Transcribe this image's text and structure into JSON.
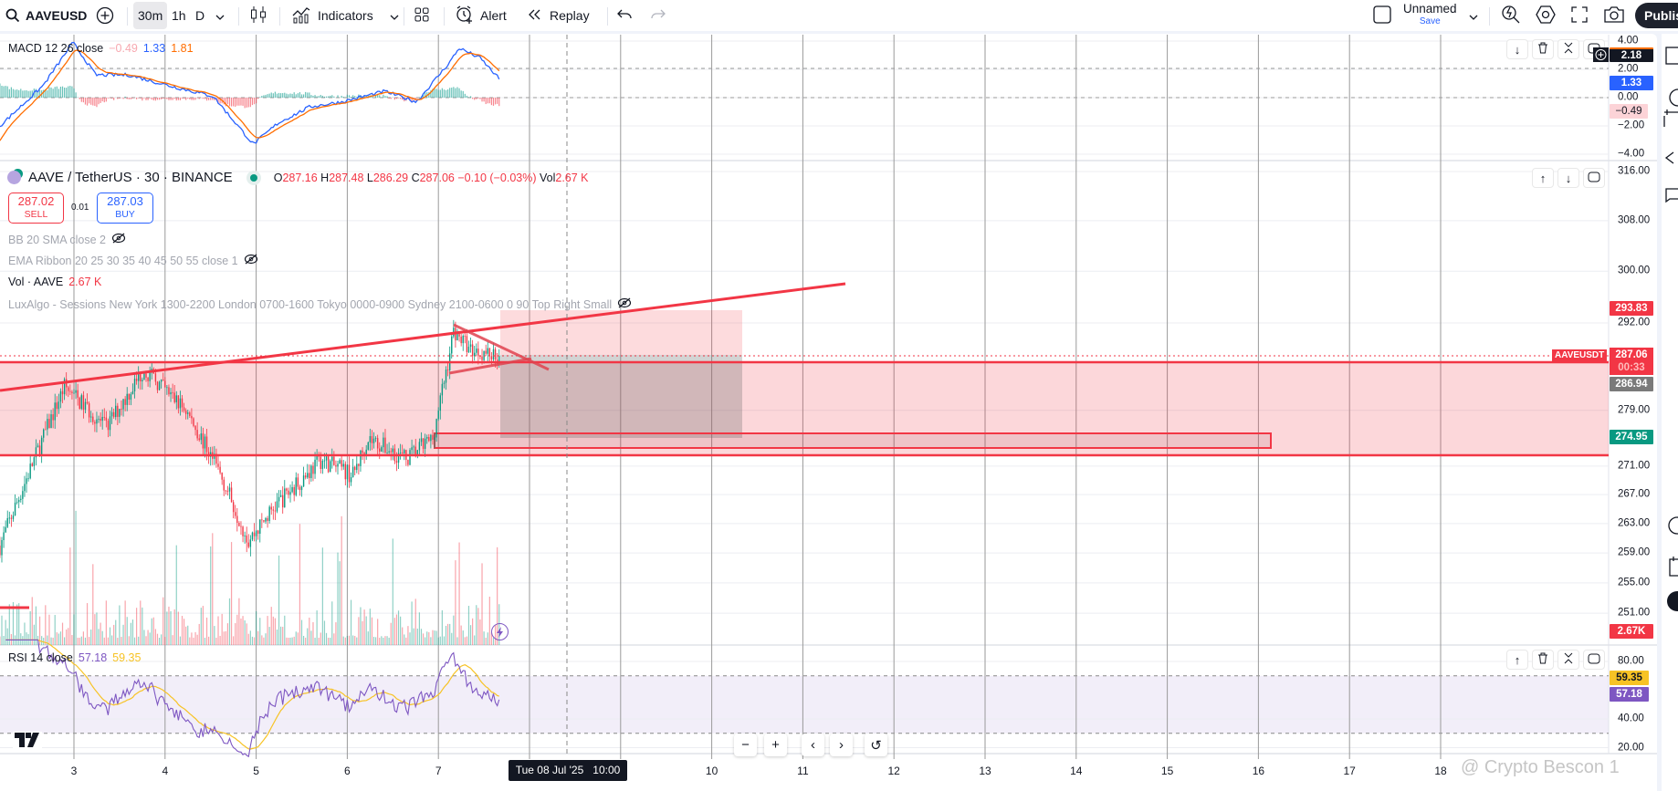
{
  "toolbar": {
    "symbol": "AAVEUSD",
    "intervals": [
      "30m",
      "1h",
      "D"
    ],
    "active_interval": "30m",
    "indicators_label": "Indicators",
    "alert_label": "Alert",
    "replay_label": "Replay",
    "layout_name": "Unnamed",
    "save_label": "Save",
    "publish_label": "Publis"
  },
  "macd": {
    "title": "MACD 12 26 close",
    "histogram": "−0.49",
    "macd": "1.33",
    "signal": "1.81",
    "axis_ticks": [
      "4.00",
      "2.00",
      "0.00",
      "−2.00",
      "−4.00"
    ],
    "crosshair_value": "2.18",
    "badge_macd": "1.33",
    "badge_hist": "−0.49",
    "series": [
      [
        "2025-07-02T04:30",
        -2.0
      ],
      [
        "2025-07-02T15:50",
        0.84
      ],
      [
        "2025-07-02T23:45",
        3.9
      ],
      [
        "2025-07-03T05:45",
        1.6
      ],
      [
        "2025-07-03T14:25",
        1.6
      ],
      [
        "2025-07-04T01:40",
        0.8
      ],
      [
        "2025-07-04T12:40",
        0.1
      ],
      [
        "2025-07-04T23:15",
        -3.3
      ],
      [
        "2025-07-05T05:45",
        -1.8
      ],
      [
        "2025-07-05T14:10",
        -0.65
      ],
      [
        "2025-07-05T22:35",
        -0.3
      ],
      [
        "2025-07-06T09:50",
        0.45
      ],
      [
        "2025-07-06T18:15",
        -0.3
      ],
      [
        "2025-07-07T02:40",
        2.4
      ],
      [
        "2025-07-07T05:30",
        3.5
      ],
      [
        "2025-07-07T11:00",
        2.8
      ],
      [
        "2025-07-07T16:00",
        1.33
      ]
    ]
  },
  "main": {
    "symbol_title": "AAVE / TetherUS · 30 · BINANCE",
    "ohlc": {
      "o_label": "O",
      "o": "287.16",
      "h_label": "H",
      "h": "287.48",
      "l_label": "L",
      "l": "286.29",
      "c_label": "C",
      "c": "287.06",
      "change": "−0.10 (−0.03%)"
    },
    "vol_label": "Vol",
    "vol_value": "2.67 K",
    "sell": {
      "price": "287.02",
      "label": "SELL"
    },
    "spread": "0.01",
    "buy": {
      "price": "287.03",
      "label": "BUY"
    },
    "indicators": [
      {
        "label": "BB 20 SMA close 2",
        "hidden": true
      },
      {
        "label": "EMA Ribbon 20 25 30 35 40 45 50 55 close 1",
        "hidden": true
      },
      {
        "label": "Vol · AAVE",
        "value": "2.67 K"
      },
      {
        "label": "LuxAlgo - Sessions New York 1300-2200 London 0700-1600 Tokyo 0000-0900 Sydney 2100-0600 0 90 Top Right Small",
        "hidden": true
      }
    ],
    "axis_ticks": [
      "316.00",
      "308.00",
      "300.00",
      "292.00",
      "279.00",
      "271.00",
      "267.00",
      "263.00",
      "259.00",
      "255.00",
      "251.00"
    ],
    "scale": "log",
    "badges": {
      "stop": "293.83",
      "symbol_tag": "AAVEUSDT",
      "last": "287.06",
      "countdown": "00:33",
      "prev": "286.94",
      "target": "274.95",
      "volume": "2.67K"
    },
    "price_path": [
      [
        "2025-07-02T04:30",
        260
      ],
      [
        "2025-07-02T21:30",
        282.5
      ],
      [
        "2025-07-03T08:30",
        276.5
      ],
      [
        "2025-07-03T18:30",
        285
      ],
      [
        "2025-07-04T05:30",
        279
      ],
      [
        "2025-07-04T14:00",
        270.5
      ],
      [
        "2025-07-04T22:00",
        260.7
      ],
      [
        "2025-07-05T05:30",
        265.7
      ],
      [
        "2025-07-05T17:00",
        271.9
      ],
      [
        "2025-07-06T01:30",
        269.7
      ],
      [
        "2025-07-06T05:30",
        275
      ],
      [
        "2025-07-06T15:30",
        272
      ],
      [
        "2025-07-06T22:30",
        275
      ],
      [
        "2025-07-07T02:30",
        286
      ],
      [
        "2025-07-07T04:00",
        290.8
      ],
      [
        "2025-07-07T08:30",
        288
      ],
      [
        "2025-07-07T16:00",
        287.06
      ]
    ]
  },
  "rsi": {
    "title": "RSI 14 close",
    "value": "57.18",
    "ma_value": "59.35",
    "axis_ticks": [
      "80.00",
      "40.00",
      "20.00"
    ]
  },
  "time_axis": {
    "ticks": [
      [
        "3",
        3
      ],
      [
        "4",
        4
      ],
      [
        "5",
        5
      ],
      [
        "6",
        6
      ],
      [
        "7",
        7
      ],
      [
        "10",
        10
      ],
      [
        "11",
        11
      ],
      [
        "12",
        12
      ],
      [
        "13",
        13
      ],
      [
        "14",
        14
      ],
      [
        "15",
        15
      ],
      [
        "16",
        16
      ],
      [
        "17",
        17
      ],
      [
        "18",
        18
      ]
    ],
    "crosshair_label": "Tue 08 Jul '25   10:00"
  },
  "watermark": "@ Crypto Bescon 1",
  "colors": {
    "up": "#089981",
    "down": "#f23645",
    "macd": "#2962ff",
    "signal": "#ff6d00",
    "rsi": "#7e57c2",
    "rsi_ma": "#f7c325",
    "accent": "#2962ff"
  }
}
